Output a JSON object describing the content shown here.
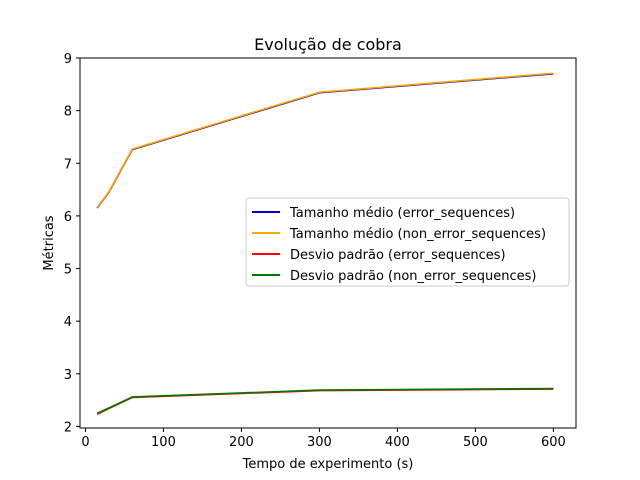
{
  "chart_data": {
    "type": "line",
    "title": "Evolução de cobra",
    "xlabel": "Tempo de experimento (s)",
    "ylabel": "Métricas",
    "xlim": [
      -7,
      629
    ],
    "ylim": [
      1.97,
      9.0
    ],
    "xticks": [
      0,
      100,
      200,
      300,
      400,
      500,
      600
    ],
    "yticks": [
      2,
      3,
      4,
      5,
      6,
      7,
      8,
      9
    ],
    "grid": false,
    "legend_position": "center-right",
    "x": [
      15,
      30,
      60,
      300,
      600
    ],
    "series": [
      {
        "name": "Tamanho médio (error_sequences)",
        "color": "#0000cc",
        "values": [
          6.15,
          6.45,
          7.26,
          8.34,
          8.7
        ]
      },
      {
        "name": "Tamanho médio (non_error_sequences)",
        "color": "#ffa500",
        "values": [
          6.16,
          6.46,
          7.27,
          8.35,
          8.71
        ]
      },
      {
        "name": "Desvio padrão (error_sequences)",
        "color": "#ff0000",
        "values": [
          2.23,
          2.34,
          2.55,
          2.68,
          2.71
        ]
      },
      {
        "name": "Desvio padrão (non_error_sequences)",
        "color": "#007700",
        "values": [
          2.25,
          2.35,
          2.56,
          2.69,
          2.72
        ]
      }
    ]
  }
}
